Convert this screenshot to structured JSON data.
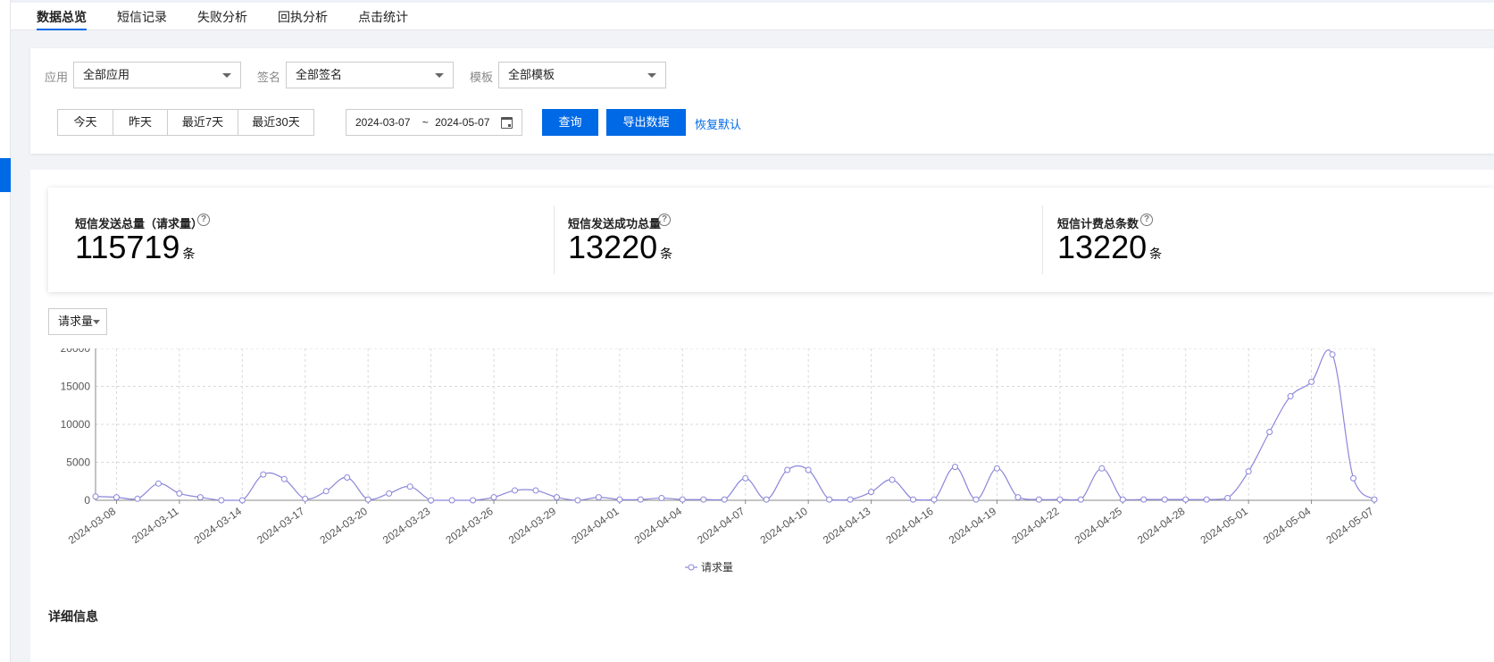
{
  "tabs": [
    "数据总览",
    "短信记录",
    "失败分析",
    "回执分析",
    "点击统计"
  ],
  "filters": {
    "app_label": "应用",
    "app_value": "全部应用",
    "sign_label": "签名",
    "sign_value": "全部签名",
    "template_label": "模板",
    "template_value": "全部模板",
    "quick_ranges": [
      "今天",
      "昨天",
      "最近7天",
      "最近30天"
    ],
    "date_start": "2024-03-07",
    "date_end": "2024-05-07",
    "date_sep": "~",
    "query_label": "查询",
    "export_label": "导出数据",
    "reset_label": "恢复默认"
  },
  "stats": [
    {
      "title": "短信发送总量（请求量）",
      "value": "115719",
      "unit": "条"
    },
    {
      "title": "短信发送成功总量",
      "value": "13220",
      "unit": "条"
    },
    {
      "title": "短信计费总条数",
      "value": "13220",
      "unit": "条"
    }
  ],
  "help_glyph": "?",
  "metric_select": "请求量",
  "detail_title": "详细信息",
  "colors": {
    "accent": "#0069e5",
    "line": "#8b86d9"
  },
  "chart_data": {
    "type": "line",
    "x": [
      "2024-03-07",
      "2024-03-08",
      "2024-03-09",
      "2024-03-10",
      "2024-03-11",
      "2024-03-12",
      "2024-03-13",
      "2024-03-14",
      "2024-03-15",
      "2024-03-16",
      "2024-03-17",
      "2024-03-18",
      "2024-03-19",
      "2024-03-20",
      "2024-03-21",
      "2024-03-22",
      "2024-03-23",
      "2024-03-24",
      "2024-03-25",
      "2024-03-26",
      "2024-03-27",
      "2024-03-28",
      "2024-03-29",
      "2024-03-30",
      "2024-03-31",
      "2024-04-01",
      "2024-04-02",
      "2024-04-03",
      "2024-04-04",
      "2024-04-05",
      "2024-04-06",
      "2024-04-07",
      "2024-04-08",
      "2024-04-09",
      "2024-04-10",
      "2024-04-11",
      "2024-04-12",
      "2024-04-13",
      "2024-04-14",
      "2024-04-15",
      "2024-04-16",
      "2024-04-17",
      "2024-04-18",
      "2024-04-19",
      "2024-04-20",
      "2024-04-21",
      "2024-04-22",
      "2024-04-23",
      "2024-04-24",
      "2024-04-25",
      "2024-04-26",
      "2024-04-27",
      "2024-04-28",
      "2024-04-29",
      "2024-04-30",
      "2024-05-01",
      "2024-05-02",
      "2024-05-03",
      "2024-05-04",
      "2024-05-05",
      "2024-05-06",
      "2024-05-07"
    ],
    "x_tick_labels": [
      "2024-03-08",
      "2024-03-11",
      "2024-03-14",
      "2024-03-17",
      "2024-03-20",
      "2024-03-23",
      "2024-03-26",
      "2024-03-29",
      "2024-04-01",
      "2024-04-04",
      "2024-04-07",
      "2024-04-10",
      "2024-04-13",
      "2024-04-16",
      "2024-04-19",
      "2024-04-22",
      "2024-04-25",
      "2024-04-28",
      "2024-05-01",
      "2024-05-04",
      "2024-05-07"
    ],
    "series": [
      {
        "name": "请求量",
        "values": [
          500,
          400,
          200,
          2200,
          900,
          400,
          0,
          0,
          3400,
          2800,
          200,
          1200,
          3000,
          100,
          900,
          1800,
          0,
          0,
          0,
          400,
          1300,
          1300,
          400,
          0,
          400,
          100,
          100,
          300,
          100,
          100,
          100,
          2900,
          100,
          4000,
          4000,
          100,
          100,
          1100,
          2700,
          100,
          100,
          4400,
          100,
          4200,
          400,
          100,
          100,
          100,
          4200,
          100,
          100,
          100,
          100,
          100,
          300,
          3800,
          9000,
          13700,
          15600,
          19200,
          2900,
          100
        ]
      }
    ],
    "ylim": [
      0,
      20000
    ],
    "yticks": [
      0,
      5000,
      10000,
      15000,
      20000
    ],
    "grid": true,
    "legend": "bottom-center"
  }
}
